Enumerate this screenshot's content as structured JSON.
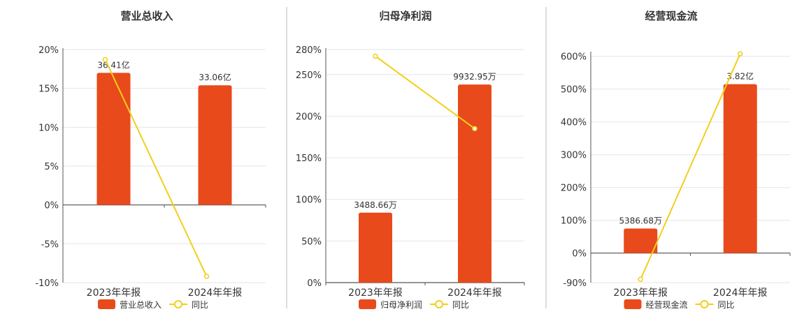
{
  "colors": {
    "bar": "#E84A1B",
    "line": "#F2CF1B",
    "grid": "#E6E6E6",
    "axis": "#555555",
    "divider": "#BBBBBB"
  },
  "chart_data": [
    {
      "type": "bar",
      "title": "营业总收入",
      "categories": [
        "2023年年报",
        "2024年年报"
      ],
      "ylim": [
        -10,
        20
      ],
      "yticks": [
        -10,
        -5,
        0,
        5,
        10,
        15,
        20
      ],
      "ytick_labels": [
        "-10%",
        "-5%",
        "0%",
        "5%",
        "10%",
        "15%",
        "20%"
      ],
      "series": [
        {
          "name": "营业总收入",
          "type": "bar",
          "values": [
            17.0,
            15.4
          ],
          "labels": [
            "36.41亿",
            "33.06亿"
          ]
        },
        {
          "name": "同比",
          "type": "line",
          "values": [
            18.7,
            -9.2
          ]
        }
      ],
      "legend": "bottom"
    },
    {
      "type": "bar",
      "title": "归母净利润",
      "categories": [
        "2023年年报",
        "2024年年报"
      ],
      "ylim": [
        0,
        280
      ],
      "yticks": [
        0,
        50,
        100,
        150,
        200,
        250,
        280
      ],
      "ytick_labels": [
        "0%",
        "50%",
        "100%",
        "150%",
        "200%",
        "250%",
        "280%"
      ],
      "series": [
        {
          "name": "归母净利润",
          "type": "bar",
          "values": [
            84,
            238
          ],
          "labels": [
            "3488.66万",
            "9932.95万"
          ]
        },
        {
          "name": "同比",
          "type": "line",
          "values": [
            272,
            185
          ]
        }
      ],
      "legend": "bottom"
    },
    {
      "type": "bar",
      "title": "经营现金流",
      "categories": [
        "2023年年报",
        "2024年年报"
      ],
      "ylim": [
        -90,
        610
      ],
      "yticks": [
        -90,
        0,
        100,
        200,
        300,
        400,
        500,
        600
      ],
      "ytick_labels": [
        "-90%",
        "0%",
        "100%",
        "200%",
        "300%",
        "400%",
        "500%",
        "600%"
      ],
      "series": [
        {
          "name": "经营现金流",
          "type": "bar",
          "values": [
            75,
            515
          ],
          "labels": [
            "5386.68万",
            "3.82亿"
          ]
        },
        {
          "name": "同比",
          "type": "line",
          "values": [
            -80,
            608
          ]
        }
      ],
      "legend": "bottom"
    }
  ]
}
